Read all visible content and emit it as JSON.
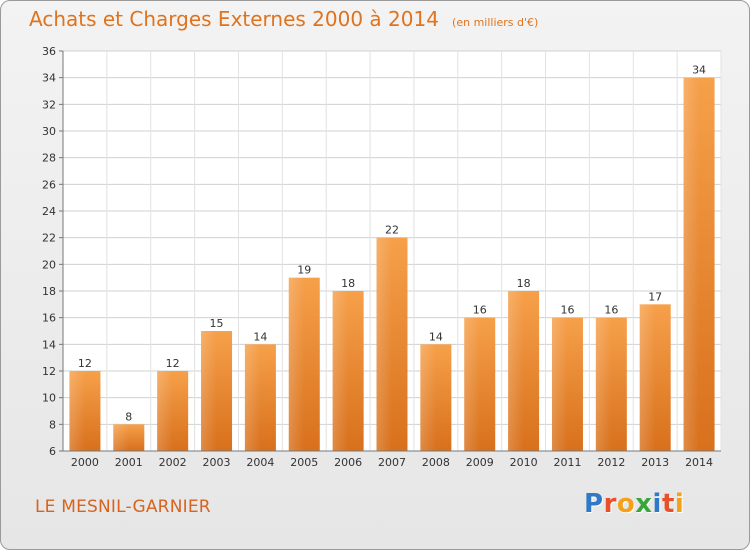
{
  "header": {
    "title": "Achats et Charges Externes 2000 à 2014",
    "subtitle": "(en milliers d'€)"
  },
  "footer": {
    "town": "LE MESNIL-GARNIER",
    "logo_text": "Proxiti",
    "logo_colors": [
      "#2f7ac6",
      "#e8502a",
      "#f5a01a",
      "#3aa63a",
      "#2f7ac6",
      "#e8502a",
      "#f5a01a"
    ]
  },
  "chart_data": {
    "type": "bar",
    "categories": [
      "2000",
      "2001",
      "2002",
      "2003",
      "2004",
      "2005",
      "2006",
      "2007",
      "2008",
      "2009",
      "2010",
      "2011",
      "2012",
      "2013",
      "2014"
    ],
    "values": [
      12,
      8,
      12,
      15,
      14,
      19,
      18,
      22,
      14,
      16,
      18,
      16,
      16,
      17,
      34
    ],
    "title": "Achats et Charges Externes 2000 à 2014",
    "xlabel": "",
    "ylabel": "",
    "ylim": [
      6,
      36
    ],
    "yticks": [
      6,
      8,
      10,
      12,
      14,
      16,
      18,
      20,
      22,
      24,
      26,
      28,
      30,
      32,
      34,
      36
    ],
    "grid": true,
    "bar_color": "#f08a2c",
    "data_labels": true
  }
}
